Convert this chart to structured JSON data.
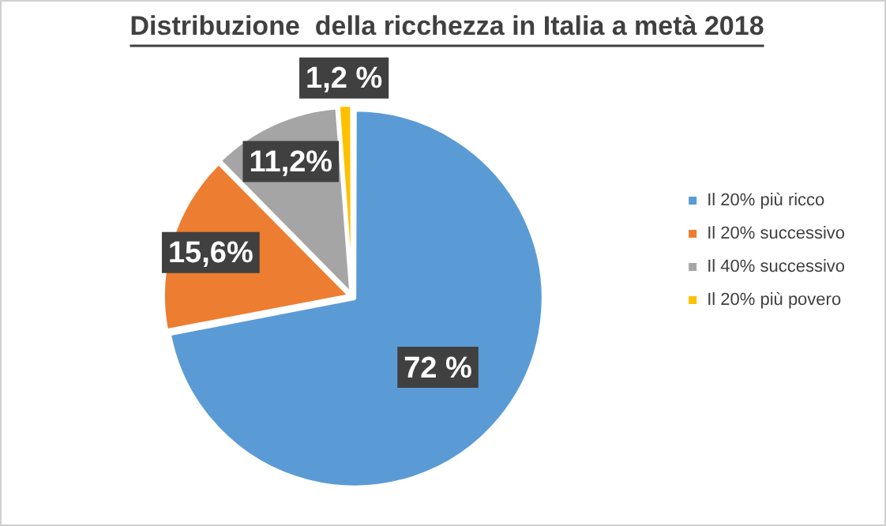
{
  "chart_data": {
    "type": "pie",
    "title": "Distribuzione  della ricchezza in Italia a metà 2018",
    "categories": [
      "Il 20% più ricco",
      "Il 20% successivo",
      "Il 40% successivo",
      "Il 20% più povero"
    ],
    "values": [
      72,
      15.6,
      11.2,
      1.2
    ],
    "colors": [
      "#5b9bd5",
      "#ed7d31",
      "#a5a5a5",
      "#ffc000"
    ],
    "value_labels": [
      "72 %",
      "15,6%",
      "11,2%",
      "1,2 %"
    ],
    "legend": "right"
  }
}
